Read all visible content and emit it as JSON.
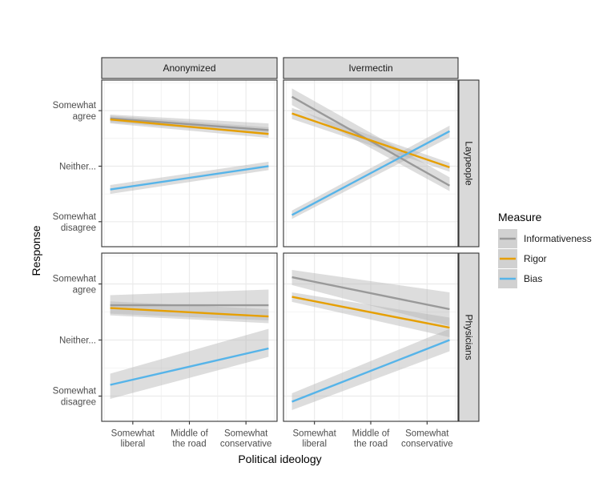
{
  "chart_data": {
    "type": "line",
    "xlabel": "Political ideology",
    "ylabel": "Response",
    "x_ticks": [
      "Somewhat\nliberal",
      "Middle of\nthe road",
      "Somewhat\nconservative"
    ],
    "y_ticks": [
      {
        "value": 4,
        "label": "Somewhat\nagree"
      },
      {
        "value": 3,
        "label": "Neither..."
      },
      {
        "value": 2,
        "label": "Somewhat\ndisagree"
      }
    ],
    "xlim": [
      -0.55,
      2.55
    ],
    "ylim": [
      1.55,
      4.55
    ],
    "columns": [
      "Anonymized",
      "Ivermectin"
    ],
    "rows": [
      "Laypeople",
      "Physicians"
    ],
    "legend": {
      "title": "Measure",
      "entries": [
        "Informativeness",
        "Rigor",
        "Bias"
      ]
    },
    "colors": {
      "Informativeness": "#999999",
      "Rigor": "#E69F00",
      "Bias": "#56B4E9",
      "ribbon": "#b3b3b3",
      "panel_grid": "#ebebeb",
      "strip_fill": "#d9d9d9"
    },
    "panels": [
      {
        "column": "Anonymized",
        "row": "Laypeople",
        "series": [
          {
            "name": "Informativeness",
            "x": [
              -0.4,
              2.4
            ],
            "y": [
              3.86,
              3.65
            ],
            "ci_low": [
              3.79,
              3.58
            ],
            "ci_high": [
              3.93,
              3.77
            ]
          },
          {
            "name": "Rigor",
            "x": [
              -0.4,
              2.4
            ],
            "y": [
              3.84,
              3.58
            ],
            "ci_low": [
              3.77,
              3.51
            ],
            "ci_high": [
              3.91,
              3.7
            ]
          },
          {
            "name": "Bias",
            "x": [
              -0.4,
              2.4
            ],
            "y": [
              2.58,
              3.0
            ],
            "ci_low": [
              2.5,
              2.93
            ],
            "ci_high": [
              2.66,
              3.08
            ]
          }
        ]
      },
      {
        "column": "Ivermectin",
        "row": "Laypeople",
        "series": [
          {
            "name": "Informativeness",
            "x": [
              -0.4,
              2.4
            ],
            "y": [
              4.25,
              2.65
            ],
            "ci_low": [
              4.1,
              2.55
            ],
            "ci_high": [
              4.4,
              2.8
            ]
          },
          {
            "name": "Rigor",
            "x": [
              -0.4,
              2.4
            ],
            "y": [
              3.95,
              2.98
            ],
            "ci_low": [
              3.85,
              2.9
            ],
            "ci_high": [
              4.05,
              3.06
            ]
          },
          {
            "name": "Bias",
            "x": [
              -0.4,
              2.4
            ],
            "y": [
              2.12,
              3.63
            ],
            "ci_low": [
              2.05,
              3.52
            ],
            "ci_high": [
              2.2,
              3.73
            ]
          }
        ]
      },
      {
        "column": "Anonymized",
        "row": "Physicians",
        "series": [
          {
            "name": "Informativeness",
            "x": [
              -0.4,
              2.4
            ],
            "y": [
              3.62,
              3.62
            ],
            "ci_low": [
              3.47,
              3.35
            ],
            "ci_high": [
              3.8,
              3.9
            ]
          },
          {
            "name": "Rigor",
            "x": [
              -0.4,
              2.4
            ],
            "y": [
              3.57,
              3.42
            ],
            "ci_low": [
              3.44,
              3.3
            ],
            "ci_high": [
              3.69,
              3.55
            ]
          },
          {
            "name": "Bias",
            "x": [
              -0.4,
              2.4
            ],
            "y": [
              2.2,
              2.85
            ],
            "ci_low": [
              1.95,
              2.7
            ],
            "ci_high": [
              2.4,
              3.2
            ]
          }
        ]
      },
      {
        "column": "Ivermectin",
        "row": "Physicians",
        "series": [
          {
            "name": "Informativeness",
            "x": [
              -0.4,
              2.4
            ],
            "y": [
              4.12,
              3.55
            ],
            "ci_low": [
              3.98,
              3.25
            ],
            "ci_high": [
              4.25,
              3.85
            ]
          },
          {
            "name": "Rigor",
            "x": [
              -0.4,
              2.4
            ],
            "y": [
              3.77,
              3.22
            ],
            "ci_low": [
              3.68,
              3.05
            ],
            "ci_high": [
              3.85,
              3.4
            ]
          },
          {
            "name": "Bias",
            "x": [
              -0.4,
              2.4
            ],
            "y": [
              1.9,
              3.0
            ],
            "ci_low": [
              1.75,
              2.8
            ],
            "ci_high": [
              2.05,
              3.2
            ]
          }
        ]
      }
    ]
  }
}
